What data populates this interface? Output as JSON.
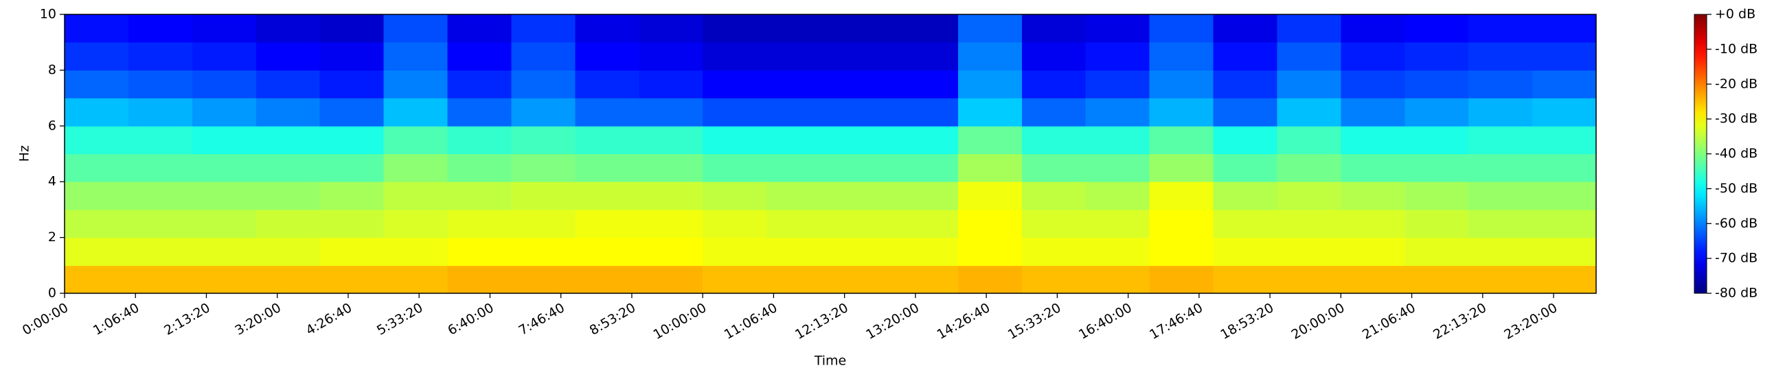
{
  "chart_data": {
    "type": "heatmap",
    "x_label": "Time",
    "y_label": "Hz",
    "xlim": [
      0,
      86400
    ],
    "ylim": [
      0,
      10
    ],
    "xticks": [
      {
        "value": 0,
        "label": "0:00:00"
      },
      {
        "value": 4000,
        "label": "1:06:40"
      },
      {
        "value": 8000,
        "label": "2:13:20"
      },
      {
        "value": 12000,
        "label": "3:20:00"
      },
      {
        "value": 16000,
        "label": "4:26:40"
      },
      {
        "value": 20000,
        "label": "5:33:20"
      },
      {
        "value": 24000,
        "label": "6:40:00"
      },
      {
        "value": 28000,
        "label": "7:46:40"
      },
      {
        "value": 32000,
        "label": "8:53:20"
      },
      {
        "value": 36000,
        "label": "10:00:00"
      },
      {
        "value": 40000,
        "label": "11:06:40"
      },
      {
        "value": 44000,
        "label": "12:13:20"
      },
      {
        "value": 48000,
        "label": "13:20:00"
      },
      {
        "value": 52000,
        "label": "14:26:40"
      },
      {
        "value": 56000,
        "label": "15:33:20"
      },
      {
        "value": 60000,
        "label": "16:40:00"
      },
      {
        "value": 64000,
        "label": "17:46:40"
      },
      {
        "value": 68000,
        "label": "18:53:20"
      },
      {
        "value": 72000,
        "label": "20:00:00"
      },
      {
        "value": 76000,
        "label": "21:06:40"
      },
      {
        "value": 80000,
        "label": "22:13:20"
      },
      {
        "value": 84000,
        "label": "23:20:00"
      }
    ],
    "yticks": [
      0,
      2,
      4,
      6,
      8,
      10
    ],
    "colormap": "jet",
    "clim": [
      -80,
      0
    ],
    "colorbar_ticks": [
      {
        "value": 0,
        "label": "+0 dB"
      },
      {
        "value": -10,
        "label": "-10 dB"
      },
      {
        "value": -20,
        "label": "-20 dB"
      },
      {
        "value": -30,
        "label": "-30 dB"
      },
      {
        "value": -40,
        "label": "-40 dB"
      },
      {
        "value": -50,
        "label": "-50 dB"
      },
      {
        "value": -60,
        "label": "-60 dB"
      },
      {
        "value": -70,
        "label": "-70 dB"
      },
      {
        "value": -80,
        "label": "-80 dB"
      }
    ],
    "xbins": [
      0,
      3600,
      7200,
      10800,
      14400,
      18000,
      21600,
      25200,
      28800,
      32400,
      36000,
      39600,
      43200,
      46800,
      50400,
      54000,
      57600,
      61200,
      64800,
      68400,
      72000,
      75600,
      79200,
      82800,
      86400
    ],
    "ybins": [
      0,
      1,
      2,
      3,
      4,
      5,
      6,
      7,
      8,
      9,
      10
    ],
    "z": [
      [
        -25,
        -25,
        -25,
        -25,
        -25,
        -25,
        -24,
        -24,
        -24,
        -24,
        -25,
        -25,
        -25,
        -25,
        -24,
        -25,
        -25,
        -24,
        -25,
        -25,
        -25,
        -25,
        -25,
        -25
      ],
      [
        -32,
        -32,
        -32,
        -32,
        -31,
        -31,
        -30,
        -30,
        -30,
        -30,
        -31,
        -31,
        -31,
        -31,
        -30,
        -31,
        -31,
        -30,
        -31,
        -31,
        -31,
        -32,
        -32,
        -32
      ],
      [
        -35,
        -35,
        -35,
        -34,
        -34,
        -33,
        -32,
        -32,
        -31,
        -31,
        -32,
        -33,
        -33,
        -33,
        -30,
        -33,
        -33,
        -30,
        -33,
        -33,
        -33,
        -34,
        -35,
        -35
      ],
      [
        -38,
        -38,
        -38,
        -38,
        -37,
        -35,
        -35,
        -34,
        -34,
        -34,
        -35,
        -36,
        -36,
        -36,
        -31,
        -35,
        -36,
        -31,
        -36,
        -35,
        -36,
        -37,
        -38,
        -38
      ],
      [
        -43,
        -43,
        -43,
        -43,
        -43,
        -39,
        -41,
        -40,
        -41,
        -41,
        -43,
        -43,
        -43,
        -43,
        -37,
        -42,
        -42,
        -38,
        -43,
        -41,
        -43,
        -43,
        -43,
        -43
      ],
      [
        -47,
        -47,
        -48,
        -48,
        -48,
        -44,
        -46,
        -45,
        -46,
        -46,
        -48,
        -48,
        -48,
        -48,
        -42,
        -47,
        -47,
        -43,
        -48,
        -45,
        -48,
        -48,
        -47,
        -47
      ],
      [
        -55,
        -56,
        -58,
        -60,
        -62,
        -55,
        -62,
        -58,
        -62,
        -62,
        -64,
        -64,
        -64,
        -64,
        -54,
        -62,
        -60,
        -56,
        -62,
        -55,
        -60,
        -58,
        -56,
        -55
      ],
      [
        -62,
        -63,
        -64,
        -66,
        -68,
        -60,
        -67,
        -62,
        -67,
        -68,
        -70,
        -70,
        -70,
        -70,
        -58,
        -68,
        -66,
        -60,
        -66,
        -60,
        -65,
        -64,
        -63,
        -62
      ],
      [
        -66,
        -67,
        -68,
        -70,
        -71,
        -62,
        -70,
        -64,
        -70,
        -71,
        -73,
        -73,
        -73,
        -73,
        -60,
        -71,
        -69,
        -62,
        -69,
        -63,
        -68,
        -67,
        -66,
        -66
      ],
      [
        -69,
        -70,
        -71,
        -73,
        -74,
        -64,
        -72,
        -66,
        -72,
        -73,
        -75,
        -75,
        -75,
        -75,
        -62,
        -73,
        -72,
        -64,
        -72,
        -66,
        -71,
        -70,
        -69,
        -69
      ]
    ]
  }
}
